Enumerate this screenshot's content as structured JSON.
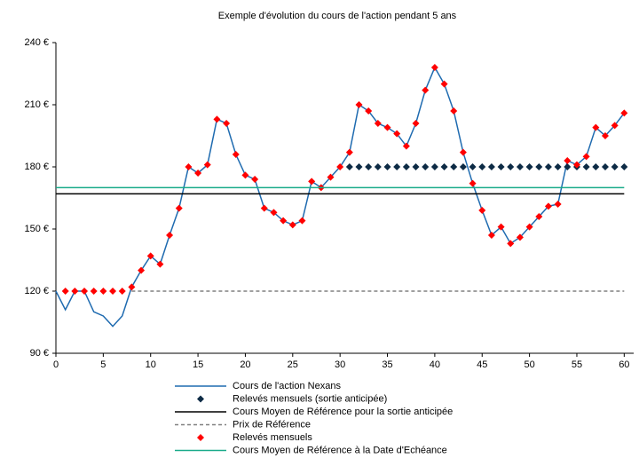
{
  "chart_data": {
    "type": "line",
    "title": "Exemple d'évolution  du cours de  l'action pendant   5 ans",
    "xlim": [
      0,
      61
    ],
    "xticks": [
      0,
      5,
      10,
      15,
      20,
      25,
      30,
      35,
      40,
      45,
      50,
      55,
      60
    ],
    "ylim": [
      90,
      240
    ],
    "yticks": [
      {
        "value": 90,
        "label": "90 €"
      },
      {
        "value": 120,
        "label": "120 €"
      },
      {
        "value": 150,
        "label": "150 €"
      },
      {
        "value": 180,
        "label": "180 €"
      },
      {
        "value": 210,
        "label": "210 €"
      },
      {
        "value": 240,
        "label": "240 €"
      }
    ],
    "series": [
      {
        "name": "Cours de l'action Nexans",
        "color": "#1f6bb0",
        "mode": "line",
        "x": [
          0,
          1,
          2,
          3,
          4,
          5,
          6,
          7,
          8,
          9,
          10,
          11,
          12,
          13,
          14,
          15,
          16,
          17,
          18,
          19,
          20,
          21,
          22,
          23,
          24,
          25,
          26,
          27,
          28,
          29,
          30,
          31,
          32,
          33,
          34,
          35,
          36,
          37,
          38,
          39,
          40,
          41,
          42,
          43,
          44,
          45,
          46,
          47,
          48,
          49,
          50,
          51,
          52,
          53,
          54,
          55,
          56,
          57,
          58,
          59,
          60
        ],
        "values": [
          120,
          111,
          120,
          120,
          110,
          108,
          103,
          108,
          122,
          130,
          137,
          133,
          147,
          160,
          180,
          177,
          181,
          203,
          201,
          186,
          176,
          174,
          160,
          158,
          154,
          152,
          154,
          173,
          170,
          175,
          180,
          187,
          210,
          207,
          201,
          199,
          196,
          190,
          201,
          217,
          228,
          220,
          207,
          187,
          172,
          159,
          147,
          151,
          143,
          146,
          151,
          156,
          161,
          162,
          183,
          181,
          185,
          199,
          195,
          200,
          206
        ]
      },
      {
        "name": "Relevés mensuels (sortie anticipée)",
        "color": "#0d2b45",
        "mode": "marker",
        "x": [
          31,
          32,
          33,
          34,
          35,
          36,
          37,
          38,
          39,
          40,
          41,
          42,
          43,
          44,
          45,
          46,
          47,
          48,
          49,
          50,
          51,
          52,
          53,
          54,
          55,
          56,
          57,
          58,
          59,
          60
        ],
        "values": [
          180,
          180,
          180,
          180,
          180,
          180,
          180,
          180,
          180,
          180,
          180,
          180,
          180,
          180,
          180,
          180,
          180,
          180,
          180,
          180,
          180,
          180,
          180,
          180,
          180,
          180,
          180,
          180,
          180,
          180
        ]
      },
      {
        "name": "Cours Moyen de Référence pour la sortie anticipée",
        "color": "#000000",
        "mode": "line",
        "x": [
          0,
          60
        ],
        "values": [
          167,
          167
        ]
      },
      {
        "name": "Prix de Référence",
        "color": "#808080",
        "mode": "line",
        "dashed": true,
        "x": [
          8,
          60
        ],
        "values": [
          120,
          120
        ]
      },
      {
        "name": "Relevés mensuels",
        "color": "#ff0000",
        "mode": "marker",
        "x": [
          1,
          2,
          3,
          4,
          5,
          6,
          7,
          8,
          9,
          10,
          11,
          12,
          13,
          14,
          15,
          16,
          17,
          18,
          19,
          20,
          21,
          22,
          23,
          24,
          25,
          26,
          27,
          28,
          29,
          30,
          31,
          32,
          33,
          34,
          35,
          36,
          37,
          38,
          39,
          40,
          41,
          42,
          43,
          44,
          45,
          46,
          47,
          48,
          49,
          50,
          51,
          52,
          53,
          54,
          55,
          56,
          57,
          58,
          59,
          60
        ],
        "values": [
          120,
          120,
          120,
          120,
          120,
          120,
          120,
          122,
          130,
          137,
          133,
          147,
          160,
          180,
          177,
          181,
          203,
          201,
          186,
          176,
          174,
          160,
          158,
          154,
          152,
          154,
          173,
          170,
          175,
          180,
          187,
          210,
          207,
          201,
          199,
          196,
          190,
          201,
          217,
          228,
          220,
          207,
          187,
          172,
          159,
          147,
          151,
          143,
          146,
          151,
          156,
          161,
          162,
          183,
          181,
          185,
          199,
          195,
          200,
          206
        ]
      },
      {
        "name": "Cours Moyen de Référence à la Date d'Echéance",
        "color": "#1aab8a",
        "mode": "line",
        "x": [
          0,
          60
        ],
        "values": [
          170,
          170
        ]
      }
    ]
  }
}
